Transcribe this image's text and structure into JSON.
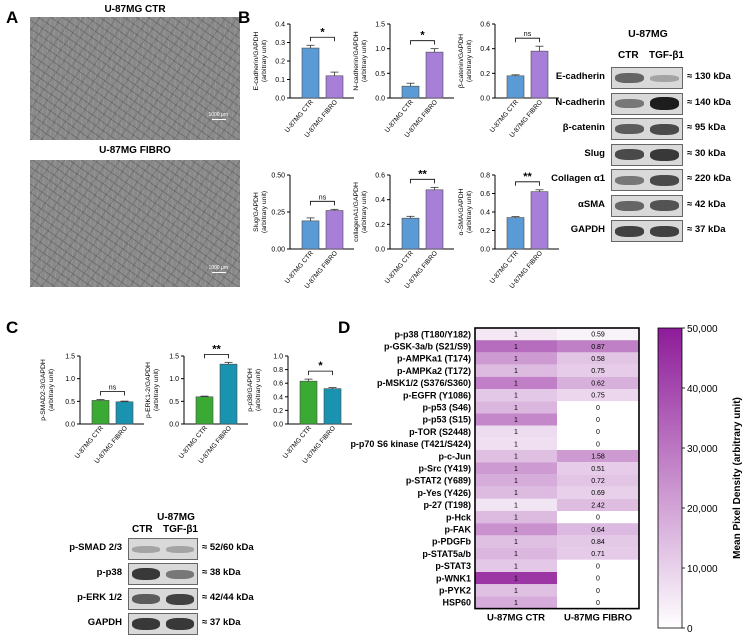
{
  "panels": {
    "A": {
      "letter": "A",
      "images": [
        {
          "title": "U-87MG CTR",
          "scale_label": "1000 µm"
        },
        {
          "title": "U-87MG FIBRO",
          "scale_label": "1000 µm"
        }
      ]
    },
    "B": {
      "letter": "B",
      "western_blot": {
        "cell_line": "U-87MG",
        "lanes": [
          "CTR",
          "TGF-β1"
        ],
        "rows": [
          {
            "name": "E-cadherin",
            "kda": "≈ 130 kDa",
            "ctr": 0.55,
            "tgf": 0.2
          },
          {
            "name": "N-cadherin",
            "kda": "≈ 140 kDa",
            "ctr": 0.45,
            "tgf": 0.95
          },
          {
            "name": "β-catenin",
            "kda": "≈ 95 kDa",
            "ctr": 0.6,
            "tgf": 0.7
          },
          {
            "name": "Slug",
            "kda": "≈ 30 kDa",
            "ctr": 0.7,
            "tgf": 0.8
          },
          {
            "name": "Collagen α1",
            "kda": "≈ 220 kDa",
            "ctr": 0.45,
            "tgf": 0.7
          },
          {
            "name": "αSMA",
            "kda": "≈ 42 kDa",
            "ctr": 0.55,
            "tgf": 0.65
          },
          {
            "name": "GAPDH",
            "kda": "≈ 37 kDa",
            "ctr": 0.75,
            "tgf": 0.75
          }
        ]
      }
    },
    "C": {
      "letter": "C",
      "western_blot": {
        "cell_line": "U-87MG",
        "lanes": [
          "CTR",
          "TGF-β1"
        ],
        "rows": [
          {
            "name": "p-SMAD 2/3",
            "kda": "≈ 52/60 kDa",
            "ctr": 0.2,
            "tgf": 0.2
          },
          {
            "name": "p-p38",
            "kda": "≈ 38 kDa",
            "ctr": 0.8,
            "tgf": 0.45
          },
          {
            "name": "p-ERK 1/2",
            "kda": "≈ 42/44 kDa",
            "ctr": 0.6,
            "tgf": 0.75
          },
          {
            "name": "GAPDH",
            "kda": "≈ 37 kDa",
            "ctr": 0.8,
            "tgf": 0.8
          }
        ]
      }
    },
    "D": {
      "letter": "D"
    }
  },
  "colors": {
    "ctr_bar": "#5b9bd5",
    "fibro_bar_b": "#a77fd8",
    "c_ctr_bar": "#3aaa35",
    "c_fibro_bar": "#1a93b0",
    "heat_max": "#8e1b99",
    "heat_min": "#ffffff"
  },
  "chart_data": [
    {
      "type": "bar",
      "panel": "B",
      "ylabel": "E-cadherin/GAPDH\n(arbitrary unit)",
      "categories": [
        "U-87MG CTR",
        "U-87MG FIBRO"
      ],
      "values": [
        0.27,
        0.12
      ],
      "errors": [
        0.015,
        0.02
      ],
      "ylim": [
        0,
        0.4
      ],
      "yticks": [
        "0.0",
        "0.1",
        "0.2",
        "0.3",
        "0.4"
      ],
      "significance": "*"
    },
    {
      "type": "bar",
      "panel": "B",
      "ylabel": "N-cadherin/GAPDH\n(arbitrary unit)",
      "categories": [
        "U-87MG CTR",
        "U-87MG FIBRO"
      ],
      "values": [
        0.24,
        0.93
      ],
      "errors": [
        0.06,
        0.07
      ],
      "ylim": [
        0,
        1.5
      ],
      "yticks": [
        "0.0",
        "0.5",
        "1.0",
        "1.5"
      ],
      "significance": "*"
    },
    {
      "type": "bar",
      "panel": "B",
      "ylabel": "β-catenin/GAPDH\n(arbitrary unit)",
      "categories": [
        "U-87MG CTR",
        "U-87MG FIBRO"
      ],
      "values": [
        0.18,
        0.38
      ],
      "errors": [
        0.008,
        0.04
      ],
      "ylim": [
        0,
        0.6
      ],
      "yticks": [
        "0.0",
        "0.2",
        "0.4",
        "0.6"
      ],
      "significance": "ns"
    },
    {
      "type": "bar",
      "panel": "B",
      "ylabel": "Slug/GAPDH\n(arbitrary unit)",
      "categories": [
        "U-87MG CTR",
        "U-87MG FIBRO"
      ],
      "values": [
        0.19,
        0.26
      ],
      "errors": [
        0.02,
        0.008
      ],
      "ylim": [
        0,
        0.5
      ],
      "yticks": [
        "0.00",
        "0.25",
        "0.50"
      ],
      "significance": "ns"
    },
    {
      "type": "bar",
      "panel": "B",
      "ylabel": "collagenA1/GAPDH\n(arbitrary unit)",
      "categories": [
        "U-87MG CTR",
        "U-87MG FIBRO"
      ],
      "values": [
        0.25,
        0.48
      ],
      "errors": [
        0.015,
        0.02
      ],
      "ylim": [
        0,
        0.6
      ],
      "yticks": [
        "0.0",
        "0.2",
        "0.4",
        "0.6"
      ],
      "significance": "**"
    },
    {
      "type": "bar",
      "panel": "B",
      "ylabel": "α-SMA/GAPDH\n(arbitrary unit)",
      "categories": [
        "U-87MG CTR",
        "U-87MG FIBRO"
      ],
      "values": [
        0.34,
        0.62
      ],
      "errors": [
        0.01,
        0.02
      ],
      "ylim": [
        0,
        0.8
      ],
      "yticks": [
        "0.0",
        "0.2",
        "0.4",
        "0.6",
        "0.8"
      ],
      "significance": "**"
    },
    {
      "type": "bar",
      "panel": "C",
      "ylabel": "p-SMAD2-3/GAPDH\n(arbitrary unit)",
      "categories": [
        "U-87MG CTR",
        "U-87MG FIBRO"
      ],
      "values": [
        0.52,
        0.49
      ],
      "errors": [
        0.02,
        0.015
      ],
      "ylim": [
        0,
        1.5
      ],
      "yticks": [
        "0.0",
        "0.5",
        "1.0",
        "1.5"
      ],
      "significance": "ns"
    },
    {
      "type": "bar",
      "panel": "C",
      "ylabel": "p-ERK1-2/GAPDH\n(arbitrary unit)",
      "categories": [
        "U-87MG CTR",
        "U-87MG FIBRO"
      ],
      "values": [
        0.6,
        1.32
      ],
      "errors": [
        0.015,
        0.04
      ],
      "ylim": [
        0,
        1.5
      ],
      "yticks": [
        "0.0",
        "0.5",
        "1.0",
        "1.5"
      ],
      "significance": "**"
    },
    {
      "type": "bar",
      "panel": "C",
      "ylabel": "p-p38/GAPDH\n(arbitrary unit)",
      "categories": [
        "U-87MG CTR",
        "U-87MG FIBRO"
      ],
      "values": [
        0.63,
        0.52
      ],
      "errors": [
        0.03,
        0.015
      ],
      "ylim": [
        0,
        1.0
      ],
      "yticks": [
        "0.0",
        "0.2",
        "0.4",
        "0.6",
        "0.8",
        "1.0"
      ],
      "significance": "*"
    },
    {
      "type": "heatmap",
      "panel": "D",
      "columns": [
        "U-87MG CTR",
        "U-87MG FIBRO"
      ],
      "rows": [
        "p-p38 (T180/Y182)",
        "p-GSK-3a/b (S21/S9)",
        "p-AMPKa1 (T174)",
        "p-AMPKa2 (T172)",
        "p-MSK1/2 (S376/S360)",
        "p-EGFR (Y1086)",
        "p-p53 (S46)",
        "p-p53 (S15)",
        "p-TOR (S2448)",
        "p-p70 S6 kinase (T421/S424)",
        "p-c-Jun",
        "p-Src (Y419)",
        "p-STAT2 (Y689)",
        "p-Yes (Y426)",
        "p-27 (T198)",
        "p-Hck",
        "p-FAK",
        "p-PDGFb",
        "p-STAT5a/b",
        "p-STAT3",
        "p-WNK1",
        "p-PYK2",
        "HSP60"
      ],
      "ctr_density": [
        5000,
        32000,
        22000,
        15000,
        28000,
        12000,
        16000,
        26000,
        8000,
        7000,
        14000,
        22000,
        18000,
        15000,
        6000,
        15000,
        24000,
        14000,
        16000,
        12000,
        44000,
        14000,
        18000
      ],
      "fibro_ratio": [
        "0.59",
        "0.87",
        "0.58",
        "0.75",
        "0.62",
        "0.75",
        "0",
        "0",
        "0",
        "0",
        "1.58",
        "0.51",
        "0.72",
        "0.69",
        "2.42",
        "0",
        "0.64",
        "0.84",
        "0.71",
        "0",
        "0",
        "0",
        "0"
      ],
      "ctr_label": "1",
      "colorbar_label": "Mean Pixel Density (arbitrary unit)",
      "colorbar_range": [
        0,
        50000
      ],
      "colorbar_ticks": [
        "50,000",
        "40,000",
        "30,000",
        "20,000",
        "10,000",
        "0"
      ]
    }
  ]
}
